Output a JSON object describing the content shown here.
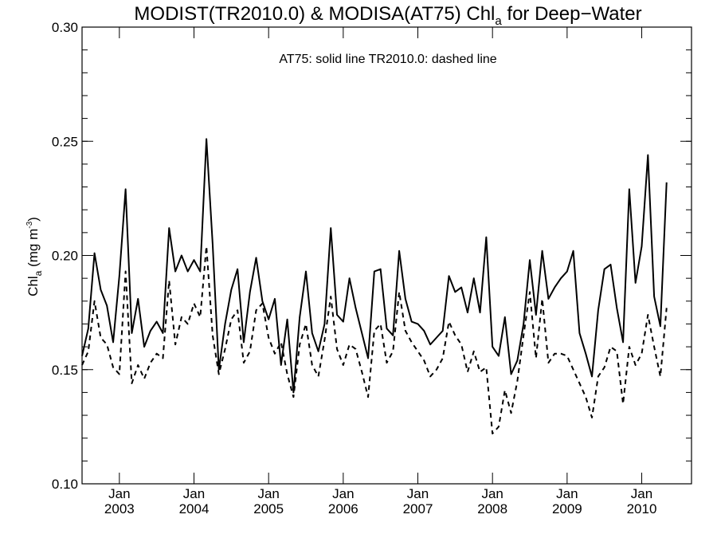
{
  "chart_data": {
    "type": "line",
    "title_main": "MODIST(TR2010.0) & MODISA(AT75)  Chl",
    "title_sub": "a",
    "title_tail": " for Deep−Water",
    "ylabel_main": "Chl",
    "ylabel_sub": "a",
    "ylabel_units": " (mg m",
    "ylabel_sup": "-3",
    "ylabel_close": ")",
    "annotation": "AT75: solid line   TR2010.0: dashed line",
    "ylim": [
      0.1,
      0.3
    ],
    "yticks": [
      0.1,
      0.15,
      0.2,
      0.25,
      0.3
    ],
    "ytick_labels": [
      "0.10",
      "0.15",
      "0.20",
      "0.25",
      "0.30"
    ],
    "xlim": [
      2002.5,
      2010.667
    ],
    "xticks": [
      2003.0,
      2004.0,
      2005.0,
      2006.0,
      2007.0,
      2008.0,
      2009.0,
      2010.0
    ],
    "xtick_month": [
      "Jan",
      "Jan",
      "Jan",
      "Jan",
      "Jan",
      "Jan",
      "Jan",
      "Jan"
    ],
    "xtick_year": [
      "2003",
      "2004",
      "2005",
      "2006",
      "2007",
      "2008",
      "2009",
      "2010"
    ],
    "grid": false,
    "x_start": 2002.5,
    "x_step": 0.08333,
    "series": [
      {
        "name": "AT75",
        "style": "solid",
        "color": "#000000",
        "values": [
          0.156,
          0.168,
          0.201,
          0.185,
          0.178,
          0.162,
          0.191,
          0.229,
          0.166,
          0.181,
          0.16,
          0.167,
          0.171,
          0.166,
          0.212,
          0.193,
          0.2,
          0.193,
          0.198,
          0.193,
          0.251,
          0.205,
          0.15,
          0.17,
          0.185,
          0.194,
          0.162,
          0.184,
          0.199,
          0.18,
          0.172,
          0.181,
          0.152,
          0.172,
          0.14,
          0.173,
          0.193,
          0.166,
          0.158,
          0.17,
          0.212,
          0.174,
          0.171,
          0.19,
          0.177,
          0.166,
          0.155,
          0.193,
          0.194,
          0.168,
          0.165,
          0.202,
          0.181,
          0.171,
          0.17,
          0.167,
          0.161,
          0.164,
          0.167,
          0.191,
          0.184,
          0.186,
          0.175,
          0.19,
          0.175,
          0.208,
          0.16,
          0.156,
          0.173,
          0.148,
          0.154,
          0.17,
          0.198,
          0.174,
          0.202,
          0.181,
          0.186,
          0.19,
          0.193,
          0.202,
          0.166,
          0.157,
          0.147,
          0.176,
          0.194,
          0.196,
          0.177,
          0.162,
          0.229,
          0.188,
          0.204,
          0.244,
          0.182,
          0.169,
          0.232
        ]
      },
      {
        "name": "TR2010.0",
        "style": "dashed",
        "color": "#000000",
        "values": [
          0.152,
          0.158,
          0.18,
          0.164,
          0.161,
          0.151,
          0.148,
          0.193,
          0.144,
          0.152,
          0.146,
          0.153,
          0.157,
          0.155,
          0.189,
          0.161,
          0.173,
          0.17,
          0.179,
          0.173,
          0.204,
          0.165,
          0.148,
          0.159,
          0.172,
          0.176,
          0.153,
          0.158,
          0.176,
          0.179,
          0.164,
          0.157,
          0.162,
          0.148,
          0.138,
          0.161,
          0.17,
          0.152,
          0.147,
          0.163,
          0.182,
          0.159,
          0.152,
          0.161,
          0.159,
          0.149,
          0.138,
          0.167,
          0.17,
          0.153,
          0.158,
          0.184,
          0.167,
          0.162,
          0.158,
          0.154,
          0.147,
          0.15,
          0.155,
          0.171,
          0.165,
          0.161,
          0.149,
          0.158,
          0.149,
          0.151,
          0.122,
          0.125,
          0.141,
          0.131,
          0.145,
          0.165,
          0.184,
          0.155,
          0.181,
          0.153,
          0.157,
          0.157,
          0.156,
          0.15,
          0.144,
          0.138,
          0.129,
          0.147,
          0.151,
          0.16,
          0.158,
          0.135,
          0.16,
          0.152,
          0.157,
          0.174,
          0.16,
          0.147,
          0.177
        ]
      }
    ]
  }
}
